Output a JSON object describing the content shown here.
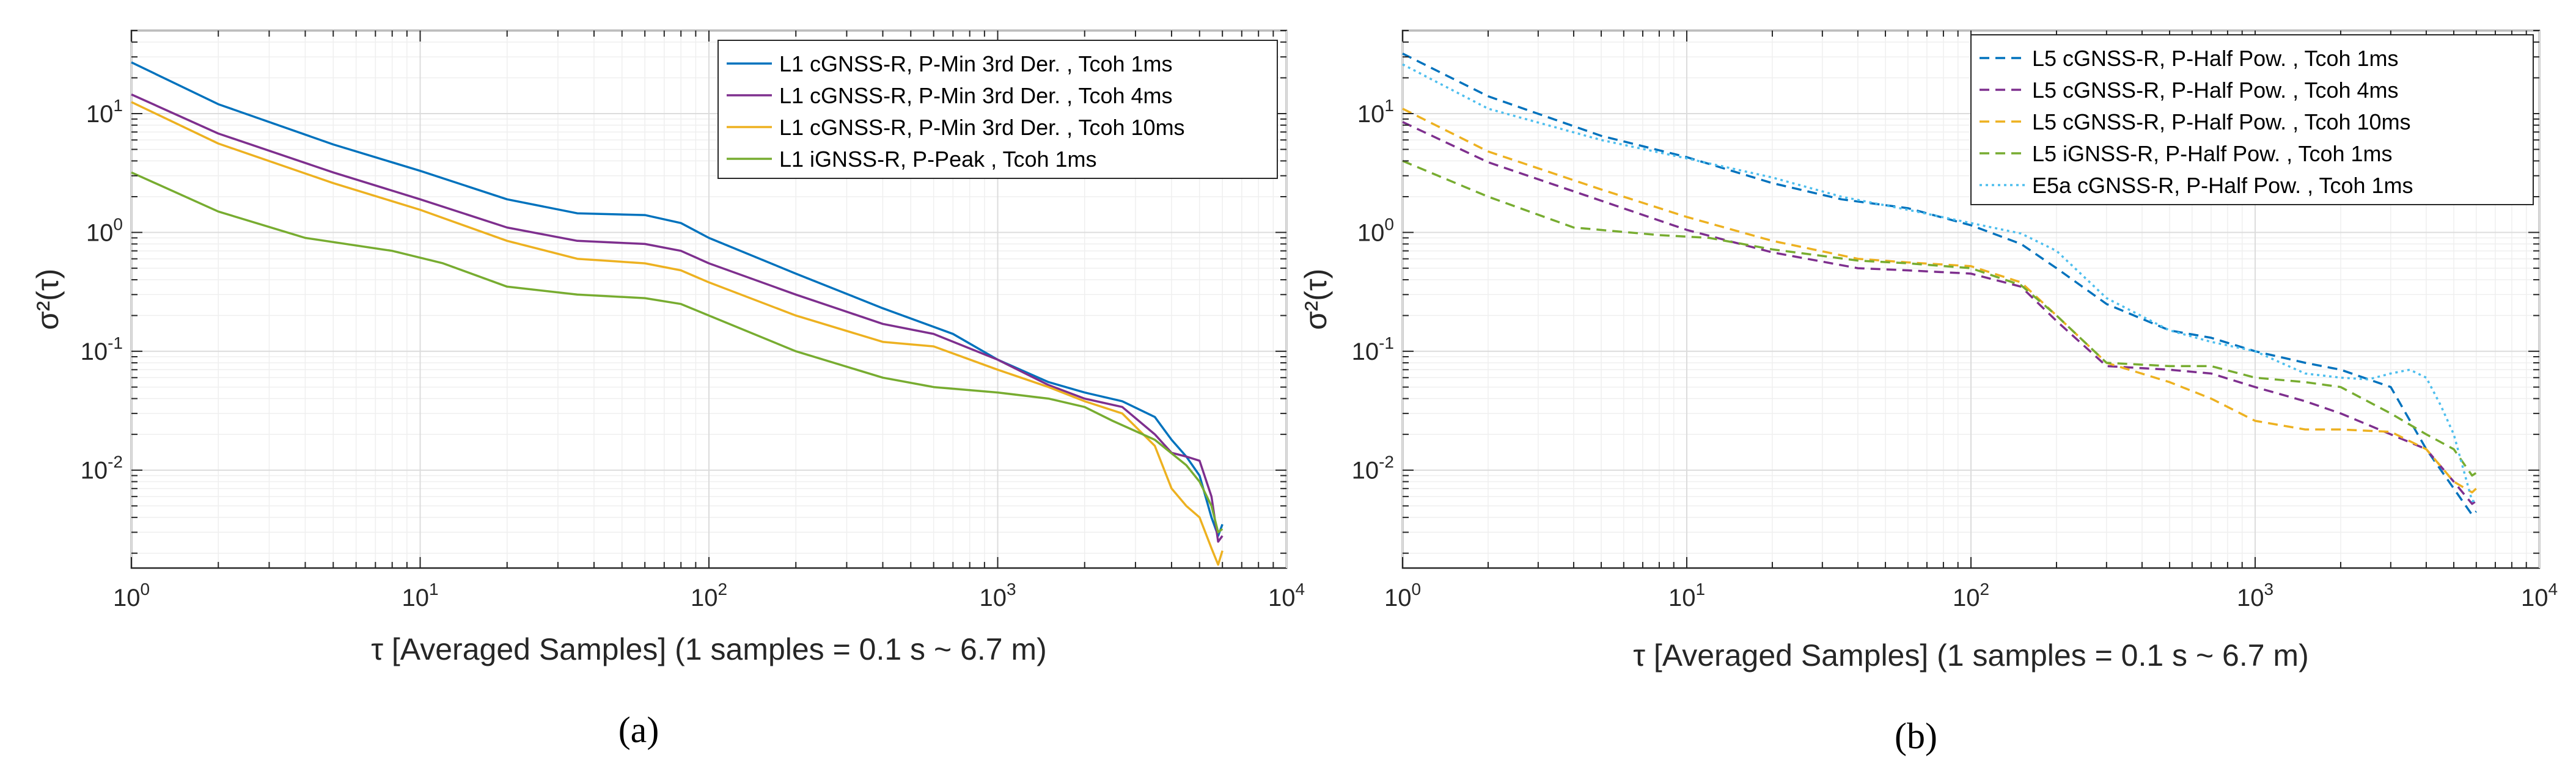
{
  "chart_data": [
    {
      "panel_label": "(a)",
      "type": "line",
      "x_scale": "log",
      "y_scale": "log",
      "xlim": [
        1,
        10000
      ],
      "ylim": [
        0.0015,
        50
      ],
      "grid": "on",
      "legend_position": "top-right",
      "xlabel": "τ [Averaged Samples] (1 samples = 0.1 s ~ 6.7 m)",
      "ylabel": "σ²(τ)",
      "xticks": [
        "10^0",
        "10^1",
        "10^2",
        "10^3",
        "10^4"
      ],
      "yticks": [
        "10^-2",
        "10^-1",
        "10^0",
        "10^1"
      ],
      "series": [
        {
          "name": "L1 cGNSS-R, P-Min 3rd Der. , Tcoh 1ms",
          "color": "#0072BD",
          "style": "solid",
          "x": [
            1,
            2,
            5,
            10,
            20,
            35,
            60,
            80,
            100,
            200,
            400,
            700,
            1000,
            1500,
            2000,
            2700,
            3500,
            4000,
            4500,
            5000,
            5500,
            5800,
            6000
          ],
          "y": [
            27,
            12,
            5.5,
            3.3,
            1.9,
            1.45,
            1.4,
            1.2,
            0.9,
            0.45,
            0.23,
            0.14,
            0.085,
            0.055,
            0.045,
            0.038,
            0.028,
            0.018,
            0.013,
            0.009,
            0.004,
            0.0028,
            0.0035
          ]
        },
        {
          "name": "L1 cGNSS-R, P-Min 3rd Der. , Tcoh 4ms",
          "color": "#7E2F8E",
          "style": "solid",
          "x": [
            1,
            2,
            5,
            10,
            20,
            35,
            60,
            80,
            100,
            200,
            400,
            600,
            1000,
            1500,
            2000,
            2700,
            3500,
            4000,
            4500,
            5000,
            5500,
            5800,
            6000
          ],
          "y": [
            14.5,
            6.8,
            3.2,
            1.9,
            1.1,
            0.85,
            0.8,
            0.7,
            0.55,
            0.3,
            0.17,
            0.14,
            0.085,
            0.052,
            0.04,
            0.034,
            0.02,
            0.014,
            0.013,
            0.012,
            0.006,
            0.0025,
            0.0028
          ]
        },
        {
          "name": "L1 cGNSS-R, P-Min 3rd Der. , Tcoh 10ms",
          "color": "#EDB120",
          "style": "solid",
          "x": [
            1,
            2,
            5,
            10,
            20,
            35,
            60,
            80,
            100,
            200,
            400,
            600,
            1000,
            1500,
            2000,
            2700,
            3500,
            4000,
            4500,
            5000,
            5500,
            5800,
            6000
          ],
          "y": [
            12.5,
            5.6,
            2.6,
            1.55,
            0.85,
            0.6,
            0.55,
            0.48,
            0.38,
            0.2,
            0.12,
            0.11,
            0.07,
            0.05,
            0.038,
            0.03,
            0.016,
            0.007,
            0.005,
            0.004,
            0.0022,
            0.0016,
            0.0021
          ]
        },
        {
          "name": "L1 iGNSS-R, P-Peak , Tcoh 1ms",
          "color": "#77AC30",
          "style": "solid",
          "x": [
            1,
            2,
            4,
            8,
            12,
            20,
            35,
            60,
            80,
            100,
            200,
            400,
            600,
            1000,
            1500,
            2000,
            2500,
            3500,
            4500,
            5000,
            5500,
            5800,
            6000
          ],
          "y": [
            3.2,
            1.5,
            0.9,
            0.7,
            0.55,
            0.35,
            0.3,
            0.28,
            0.25,
            0.2,
            0.1,
            0.06,
            0.05,
            0.045,
            0.04,
            0.034,
            0.026,
            0.018,
            0.011,
            0.008,
            0.005,
            0.003,
            0.0032
          ]
        }
      ]
    },
    {
      "panel_label": "(b)",
      "type": "line",
      "x_scale": "log",
      "y_scale": "log",
      "xlim": [
        1,
        10000
      ],
      "ylim": [
        0.0015,
        50
      ],
      "grid": "on",
      "legend_position": "top-right",
      "xlabel": "τ [Averaged Samples] (1 samples = 0.1 s ~ 6.7 m)",
      "ylabel": "σ²(τ)",
      "xticks": [
        "10^0",
        "10^1",
        "10^2",
        "10^3",
        "10^4"
      ],
      "yticks": [
        "10^-2",
        "10^-1",
        "10^0",
        "10^1"
      ],
      "series": [
        {
          "name": "L5 cGNSS-R, P-Half Pow. , Tcoh 1ms",
          "color": "#0072BD",
          "style": "dashed",
          "x": [
            1,
            2,
            5,
            10,
            20,
            35,
            60,
            100,
            150,
            200,
            300,
            500,
            700,
            1000,
            1500,
            2000,
            3000,
            4000,
            5000,
            5800,
            6000
          ],
          "y": [
            32,
            14,
            6.5,
            4.3,
            2.6,
            1.9,
            1.6,
            1.15,
            0.8,
            0.5,
            0.25,
            0.15,
            0.13,
            0.1,
            0.08,
            0.07,
            0.05,
            0.015,
            0.007,
            0.0042,
            0.0045
          ]
        },
        {
          "name": "L5 cGNSS-R, P-Half Pow. , Tcoh 4ms",
          "color": "#7E2F8E",
          "style": "dashed",
          "x": [
            1,
            2,
            5,
            10,
            20,
            40,
            60,
            100,
            150,
            200,
            300,
            500,
            700,
            1000,
            1500,
            2000,
            3000,
            4000,
            5000,
            5800,
            6000
          ],
          "y": [
            8.5,
            3.9,
            1.85,
            1.05,
            0.68,
            0.5,
            0.48,
            0.45,
            0.35,
            0.18,
            0.075,
            0.07,
            0.065,
            0.05,
            0.038,
            0.03,
            0.02,
            0.015,
            0.008,
            0.0052,
            0.0055
          ]
        },
        {
          "name": "L5 cGNSS-R, P-Half Pow. , Tcoh 10ms",
          "color": "#EDB120",
          "style": "dashed",
          "x": [
            1,
            2,
            5,
            10,
            20,
            40,
            60,
            100,
            150,
            200,
            300,
            500,
            700,
            1000,
            1500,
            2000,
            3000,
            4000,
            5000,
            5800,
            6000
          ],
          "y": [
            11,
            4.8,
            2.3,
            1.35,
            0.85,
            0.6,
            0.56,
            0.52,
            0.38,
            0.2,
            0.08,
            0.055,
            0.04,
            0.026,
            0.022,
            0.022,
            0.021,
            0.015,
            0.008,
            0.0065,
            0.007
          ]
        },
        {
          "name": "L5 iGNSS-R, P-Half Pow. , Tcoh 1ms",
          "color": "#77AC30",
          "style": "dashed",
          "x": [
            1,
            2,
            4,
            8,
            12,
            20,
            40,
            60,
            100,
            150,
            200,
            300,
            500,
            700,
            1000,
            1500,
            2000,
            3000,
            4000,
            5000,
            5800,
            6000
          ],
          "y": [
            4,
            2,
            1.1,
            0.95,
            0.9,
            0.72,
            0.58,
            0.55,
            0.5,
            0.36,
            0.2,
            0.08,
            0.075,
            0.075,
            0.06,
            0.055,
            0.05,
            0.03,
            0.02,
            0.015,
            0.009,
            0.0095
          ]
        },
        {
          "name": "E5a cGNSS-R, P-Half Pow. , Tcoh 1ms",
          "color": "#4DBEEE",
          "style": "dotted",
          "x": [
            1,
            2,
            5,
            10,
            20,
            35,
            60,
            100,
            150,
            200,
            300,
            500,
            700,
            1000,
            1500,
            2000,
            2500,
            3000,
            3500,
            4000,
            4500,
            5000,
            5800,
            6000
          ],
          "y": [
            26,
            11,
            6,
            4.2,
            2.9,
            2.0,
            1.55,
            1.2,
            0.98,
            0.7,
            0.28,
            0.15,
            0.12,
            0.1,
            0.065,
            0.06,
            0.058,
            0.065,
            0.07,
            0.06,
            0.035,
            0.02,
            0.0055,
            0.0055
          ]
        }
      ]
    }
  ]
}
